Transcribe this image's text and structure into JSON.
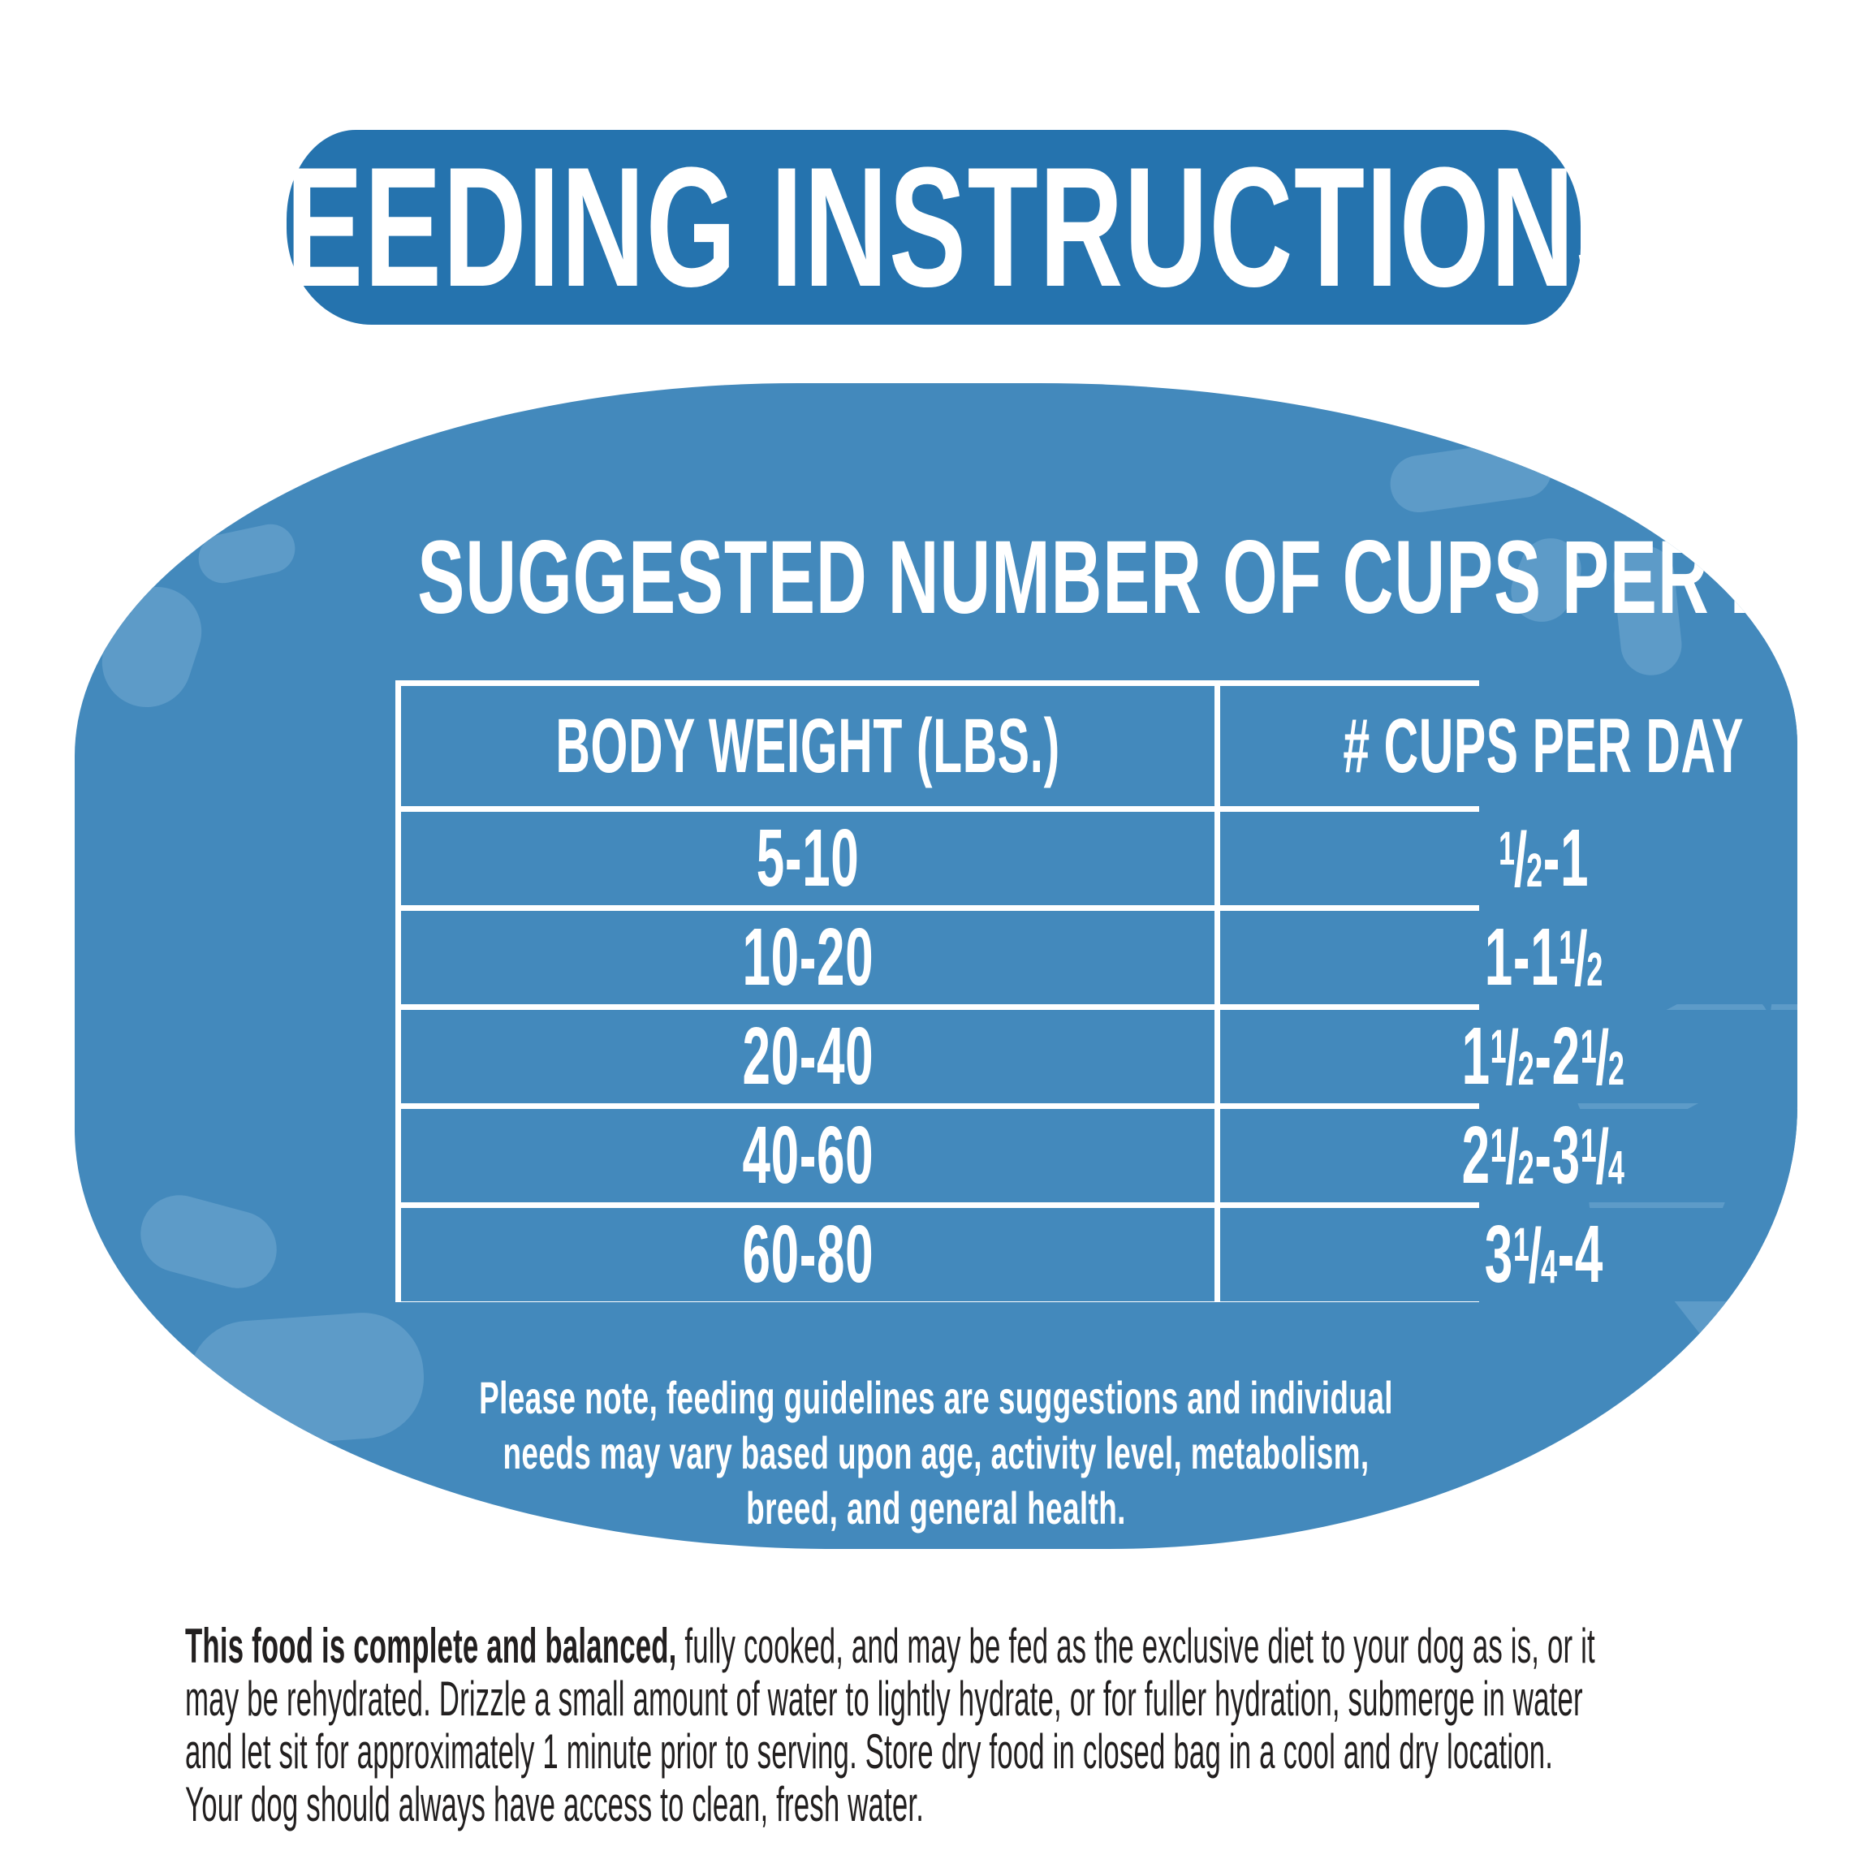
{
  "colors": {
    "banner_blue": "#2573AE",
    "panel_blue": "#4389BC",
    "kibble_blue": "#5D9BC8",
    "text_dark": "#221F1F",
    "text_white": "#FFFFFF"
  },
  "title": "FEEDING INSTRUCTIONS",
  "panel": {
    "heading": "SUGGESTED NUMBER OF CUPS PER DAY",
    "table": {
      "columns": [
        "BODY WEIGHT (LBS.)",
        "# CUPS PER DAY"
      ],
      "rows": [
        {
          "weight": "5-10",
          "cups": "½-1"
        },
        {
          "weight": "10-20",
          "cups": "1-1½"
        },
        {
          "weight": "20-40",
          "cups": "1½-2½"
        },
        {
          "weight": "40-60",
          "cups": "2½-3¼"
        },
        {
          "weight": "60-80",
          "cups": "3¼-4"
        }
      ]
    },
    "note": "Please note, feeding guidelines are suggestions and individual needs may vary based upon age, activity level, metabolism, breed, and general health."
  },
  "footer": {
    "bold_lead": "This food is complete and balanced,",
    "rest": "fully cooked, and may be fed as the exclusive diet to your dog as is, or it may be rehydrated. Drizzle a small amount of water to lightly hydrate, or for fuller hydration, submerge in water and let sit for approximately 1 minute prior to serving. Store dry food in closed bag in a cool and dry location. Your dog should always have access to clean, fresh water."
  }
}
